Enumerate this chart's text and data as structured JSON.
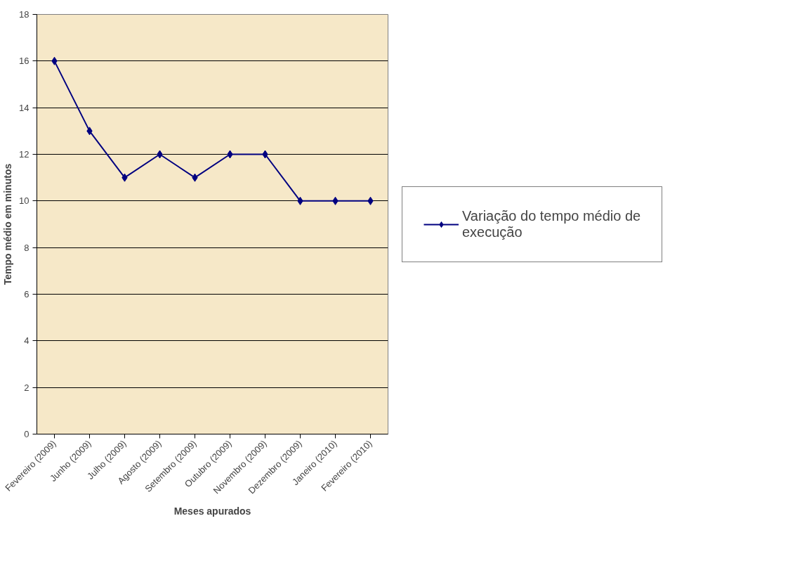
{
  "chart_data": {
    "type": "line",
    "xlabel": "Meses apurados",
    "ylabel": "Tempo médio em minutos",
    "categories": [
      "Fevereiro (2009)",
      "Junho (2009)",
      "Julho (2009)",
      "Agosto (2009)",
      "Setembro (2009)",
      "Outubro (2009)",
      "Novembro (2009)",
      "Dezembro (2009)",
      "Janeiro (2010)",
      "Fevereiro (2010)"
    ],
    "series": [
      {
        "name": "Variação do tempo médio de execução",
        "color": "#000080",
        "values": [
          16,
          13,
          11,
          12,
          11,
          12,
          12,
          10,
          10,
          10
        ]
      }
    ],
    "ylim": [
      0,
      18
    ],
    "yticks": [
      0,
      2,
      4,
      6,
      8,
      10,
      12,
      14,
      16,
      18
    ],
    "grid": "y",
    "legend": "right",
    "marker": "diamond",
    "line_style": "solid"
  }
}
